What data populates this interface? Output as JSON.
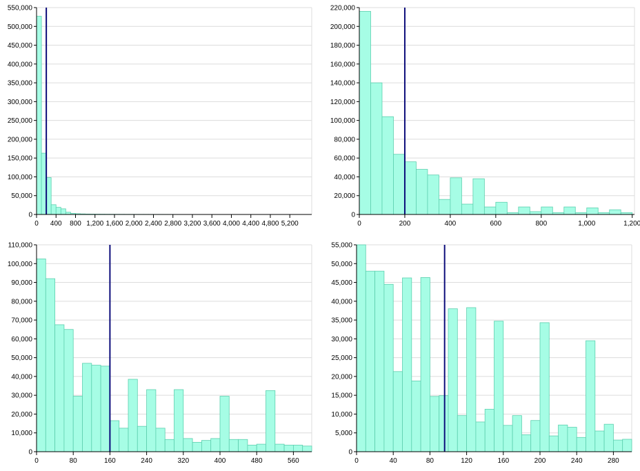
{
  "colors": {
    "bar_fill": "#a6fde5",
    "bar_stroke": "#5ccfae",
    "marker": "#0b0b7a",
    "grid": "#dcdcdc",
    "axis": "#000000"
  },
  "chart_data": [
    {
      "type": "bar",
      "bin_width": 100,
      "x_start": 0,
      "values": [
        527000,
        163000,
        98000,
        26000,
        19000,
        15000,
        6000,
        3000,
        2000,
        1500,
        1200,
        1000,
        900,
        800,
        700,
        600,
        550,
        500,
        450,
        400,
        380,
        360,
        340,
        320,
        300,
        280,
        260,
        240,
        220,
        200,
        190,
        180,
        170,
        160,
        150,
        140,
        130,
        120,
        110,
        100,
        100,
        100,
        100,
        100,
        100,
        100,
        100,
        100,
        100,
        100,
        100,
        100,
        100,
        100,
        100
      ],
      "marker_x": 200,
      "xlim": [
        0,
        5650
      ],
      "ylim": [
        0,
        550000
      ],
      "xticks": [
        0,
        400,
        800,
        1200,
        1600,
        2000,
        2400,
        2800,
        3200,
        3600,
        4000,
        4400,
        4800,
        5200
      ],
      "xtick_labels": [
        "0",
        "400",
        "800",
        "1,200",
        "1,600",
        "2,000",
        "2,400",
        "2,800",
        "3,200",
        "3,600",
        "4,000",
        "4,400",
        "4,800",
        "5,200"
      ],
      "yticks": [
        0,
        50000,
        100000,
        150000,
        200000,
        250000,
        300000,
        350000,
        400000,
        450000,
        500000,
        550000
      ],
      "ytick_labels": [
        "0",
        "50,000",
        "100,000",
        "150,000",
        "200,000",
        "250,000",
        "300,000",
        "350,000",
        "400,000",
        "450,000",
        "500,000",
        "550,000"
      ]
    },
    {
      "type": "bar",
      "bin_width": 50,
      "x_start": 0,
      "values": [
        216000,
        140000,
        104000,
        64000,
        56000,
        48000,
        42000,
        16000,
        39000,
        11000,
        38000,
        8000,
        13000,
        2000,
        8000,
        3000,
        8000,
        2000,
        8000,
        2000,
        7000,
        2000,
        5000,
        2000
      ],
      "marker_x": 200,
      "xlim": [
        0,
        1210
      ],
      "ylim": [
        0,
        220000
      ],
      "xticks": [
        0,
        200,
        400,
        600,
        800,
        1000,
        1200
      ],
      "xtick_labels": [
        "0",
        "200",
        "400",
        "600",
        "800",
        "1,000",
        "1,200"
      ],
      "yticks": [
        0,
        20000,
        40000,
        60000,
        80000,
        100000,
        120000,
        140000,
        160000,
        180000,
        200000,
        220000
      ],
      "ytick_labels": [
        "0",
        "20,000",
        "40,000",
        "60,000",
        "80,000",
        "100,000",
        "120,000",
        "140,000",
        "160,000",
        "180,000",
        "200,000",
        "220,000"
      ]
    },
    {
      "type": "bar",
      "bin_width": 20,
      "x_start": 0,
      "values": [
        102500,
        92000,
        67500,
        65000,
        29500,
        47000,
        46000,
        45500,
        16500,
        12500,
        38500,
        13500,
        33000,
        12500,
        6500,
        33000,
        7000,
        5000,
        6000,
        7000,
        29500,
        6500,
        6500,
        3500,
        4000,
        32500,
        4000,
        3500,
        3500,
        3000
      ],
      "marker_x": 160,
      "xlim": [
        0,
        600
      ],
      "ylim": [
        0,
        110000
      ],
      "xticks": [
        0,
        80,
        160,
        240,
        320,
        400,
        480,
        560
      ],
      "xtick_labels": [
        "0",
        "80",
        "160",
        "240",
        "320",
        "400",
        "480",
        "560"
      ],
      "yticks": [
        0,
        10000,
        20000,
        30000,
        40000,
        50000,
        60000,
        70000,
        80000,
        90000,
        100000,
        110000
      ],
      "ytick_labels": [
        "0",
        "10,000",
        "20,000",
        "30,000",
        "40,000",
        "50,000",
        "60,000",
        "70,000",
        "80,000",
        "90,000",
        "100,000",
        "110,000"
      ]
    },
    {
      "type": "bar",
      "bin_width": 10,
      "x_start": 0,
      "values": [
        55000,
        48000,
        48000,
        44500,
        21300,
        46200,
        18800,
        46300,
        14700,
        14900,
        38000,
        9600,
        38300,
        7900,
        11300,
        34700,
        7000,
        9600,
        4500,
        8300,
        34300,
        4200,
        7100,
        6500,
        3800,
        29500,
        5500,
        7300,
        3100,
        3300
      ],
      "marker_x": 96,
      "xlim": [
        0,
        300
      ],
      "ylim": [
        0,
        55000
      ],
      "xticks": [
        0,
        40,
        80,
        120,
        160,
        200,
        240,
        280
      ],
      "xtick_labels": [
        "0",
        "40",
        "80",
        "120",
        "160",
        "200",
        "240",
        "280"
      ],
      "yticks": [
        0,
        5000,
        10000,
        15000,
        20000,
        25000,
        30000,
        35000,
        40000,
        45000,
        50000,
        55000
      ],
      "ytick_labels": [
        "0",
        "5,000",
        "10,000",
        "15,000",
        "20,000",
        "25,000",
        "30,000",
        "35,000",
        "40,000",
        "45,000",
        "50,000",
        "55,000"
      ]
    }
  ]
}
